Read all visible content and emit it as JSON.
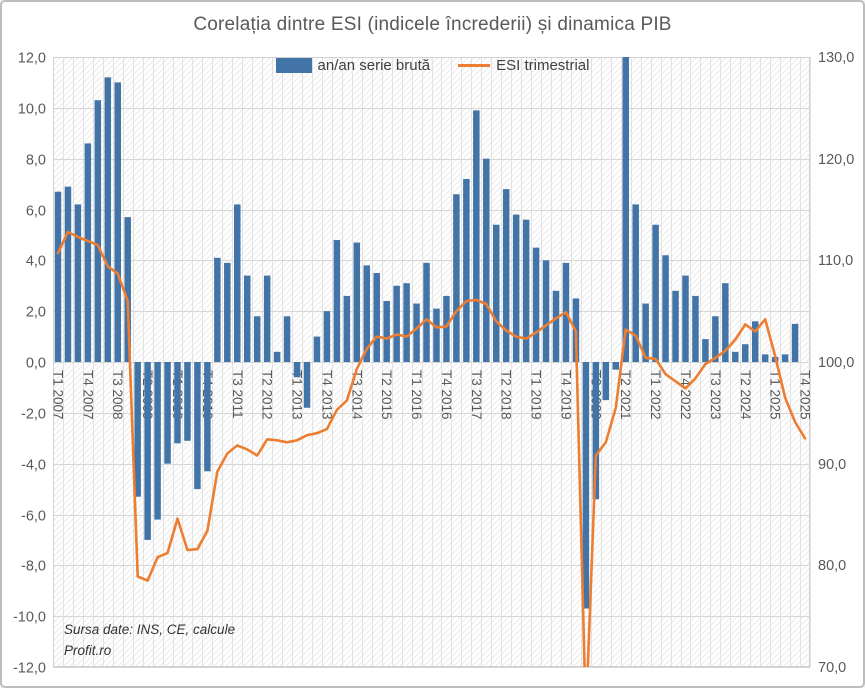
{
  "title": "Corelația dintre ESI  (indicele încrederii) și dinamica PIB",
  "legend": {
    "bars_label": "an/an serie brută",
    "line_label": "ESI trimestrial"
  },
  "source_note": {
    "line1": "Sursa date: INS, CE, calcule",
    "line2": "Profit.ro"
  },
  "colors": {
    "bar": "#4274a7",
    "line": "#ed7d31",
    "text_gray": "#595959",
    "grid_h": "#d6d6d6",
    "grid_v": "#e2e2e2",
    "hatch": "#ebebeb",
    "plot_border": "#d0d0d0"
  },
  "chart_data": {
    "type": "combo",
    "subtype": [
      "bar",
      "line"
    ],
    "title": "Corelația dintre ESI  (indicele încrederii) și dinamica PIB",
    "grid": true,
    "legend_position": "top-center",
    "categories": [
      "T1 2007",
      "T2 2007",
      "T3 2007",
      "T4 2007",
      "T1 2008",
      "T2 2008",
      "T3 2008",
      "T4 2008",
      "T1 2009",
      "T2 2009",
      "T3 2009",
      "T4 2009",
      "T1 2010",
      "T2 2010",
      "T3 2010",
      "T4 2010",
      "T1 2011",
      "T2 2011",
      "T3 2011",
      "T4 2011",
      "T1 2012",
      "T2 2012",
      "T3 2012",
      "T4 2012",
      "T1 2013",
      "T2 2013",
      "T3 2013",
      "T4 2013",
      "T1 2014",
      "T2 2014",
      "T3 2014",
      "T4 2014",
      "T1 2015",
      "T2 2015",
      "T3 2015",
      "T4 2015",
      "T1 2016",
      "T2 2016",
      "T3 2016",
      "T4 2016",
      "T1 2017",
      "T2 2017",
      "T3 2017",
      "T4 2017",
      "T1 2018",
      "T2 2018",
      "T3 2018",
      "T4 2018",
      "T1 2019",
      "T2 2019",
      "T3 2019",
      "T4 2019",
      "T1 2020",
      "T2 2020",
      "T3 2020",
      "T4 2020",
      "T1 2021",
      "T2 2021",
      "T3 2021",
      "T4 2021",
      "T1 2022",
      "T2 2022",
      "T3 2022",
      "T4 2022",
      "T1 2023",
      "T2 2023",
      "T3 2023",
      "T4 2023",
      "T1 2024",
      "T2 2024",
      "T3 2024",
      "T4 2024",
      "T1 2025",
      "T2 2025",
      "T3 2025",
      "T4 2025"
    ],
    "x_label_every": 3,
    "series": [
      {
        "name": "an/an serie brută",
        "type": "bar",
        "axis": "left",
        "color": "#4274a7",
        "values": [
          6.7,
          6.9,
          6.2,
          8.6,
          10.3,
          11.2,
          11.0,
          5.7,
          -5.3,
          -7.0,
          -6.2,
          -4.0,
          -3.2,
          -3.1,
          -5.0,
          -4.3,
          4.1,
          3.9,
          6.2,
          3.4,
          1.8,
          3.4,
          0.4,
          1.8,
          -0.6,
          -1.8,
          1.0,
          2.0,
          4.8,
          2.6,
          4.7,
          3.8,
          3.5,
          2.4,
          3.0,
          3.1,
          2.3,
          3.9,
          2.1,
          2.6,
          6.6,
          7.2,
          9.9,
          8.0,
          5.4,
          6.8,
          5.8,
          5.6,
          4.5,
          4.0,
          2.8,
          3.9,
          2.5,
          -9.7,
          -5.4,
          -1.5,
          -0.3,
          12.0,
          6.2,
          2.3,
          5.4,
          4.2,
          2.8,
          3.4,
          2.6,
          0.9,
          1.8,
          3.1,
          0.4,
          0.7,
          1.6,
          0.3,
          0.2,
          0.3,
          1.5,
          null
        ]
      },
      {
        "name": "ESI trimestrial",
        "type": "line",
        "axis": "right",
        "color": "#ed7d31",
        "values": [
          110.7,
          112.8,
          112.3,
          111.9,
          111.5,
          109.4,
          108.7,
          106.0,
          78.9,
          78.5,
          80.8,
          81.2,
          84.6,
          81.5,
          81.6,
          83.4,
          89.2,
          91.0,
          91.8,
          91.4,
          90.8,
          92.4,
          92.3,
          92.1,
          92.3,
          92.8,
          93.0,
          93.4,
          95.3,
          96.2,
          99.3,
          101.3,
          102.5,
          102.3,
          102.7,
          102.5,
          103.3,
          104.2,
          103.4,
          103.5,
          105.0,
          106.0,
          106.1,
          105.7,
          104.0,
          103.1,
          102.5,
          102.3,
          102.9,
          103.6,
          104.3,
          104.9,
          103.0,
          65.0,
          90.8,
          92.1,
          95.5,
          103.2,
          102.6,
          100.4,
          100.3,
          98.8,
          98.1,
          97.4,
          98.4,
          99.8,
          100.4,
          101.1,
          102.2,
          103.7,
          103.0,
          104.2,
          100.6,
          96.5,
          94.1,
          92.5
        ]
      }
    ],
    "left_axis": {
      "min": -12,
      "max": 12,
      "step": 2,
      "tick_labels": [
        "12,0",
        "10,0",
        "8,0",
        "6,0",
        "4,0",
        "2,0",
        "0,0",
        "-2,0",
        "-4,0",
        "-6,0",
        "-8,0",
        "-10,0",
        "-12,0"
      ]
    },
    "right_axis": {
      "min": 70,
      "max": 130,
      "step": 10,
      "tick_labels": [
        "130,0",
        "120,0",
        "110,0",
        "100,0",
        "90,0",
        "80,0",
        "70,0"
      ]
    }
  }
}
